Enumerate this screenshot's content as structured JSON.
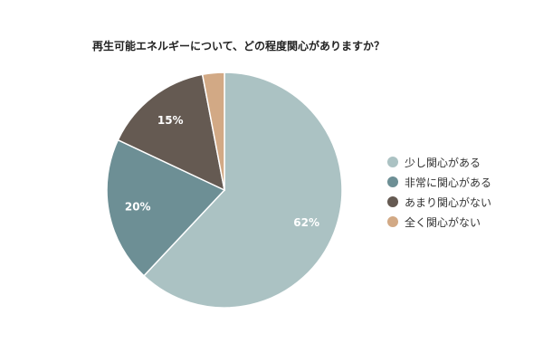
{
  "chart_data": {
    "type": "pie",
    "title": "再生可能エネルギーについて、どの程度関心がありますか？",
    "categories": [
      "少し関心がある",
      "非常に関心がある",
      "あまり関心がない",
      "全く関心がない"
    ],
    "values": [
      62,
      20,
      15,
      3
    ],
    "data_labels": [
      "62%",
      "20%",
      "15%",
      ""
    ],
    "colors": [
      "#abc2c3",
      "#6d8f95",
      "#655a52",
      "#d2a985"
    ],
    "legend_position": "right",
    "start_angle": "12 o'clock",
    "direction": "clockwise"
  }
}
